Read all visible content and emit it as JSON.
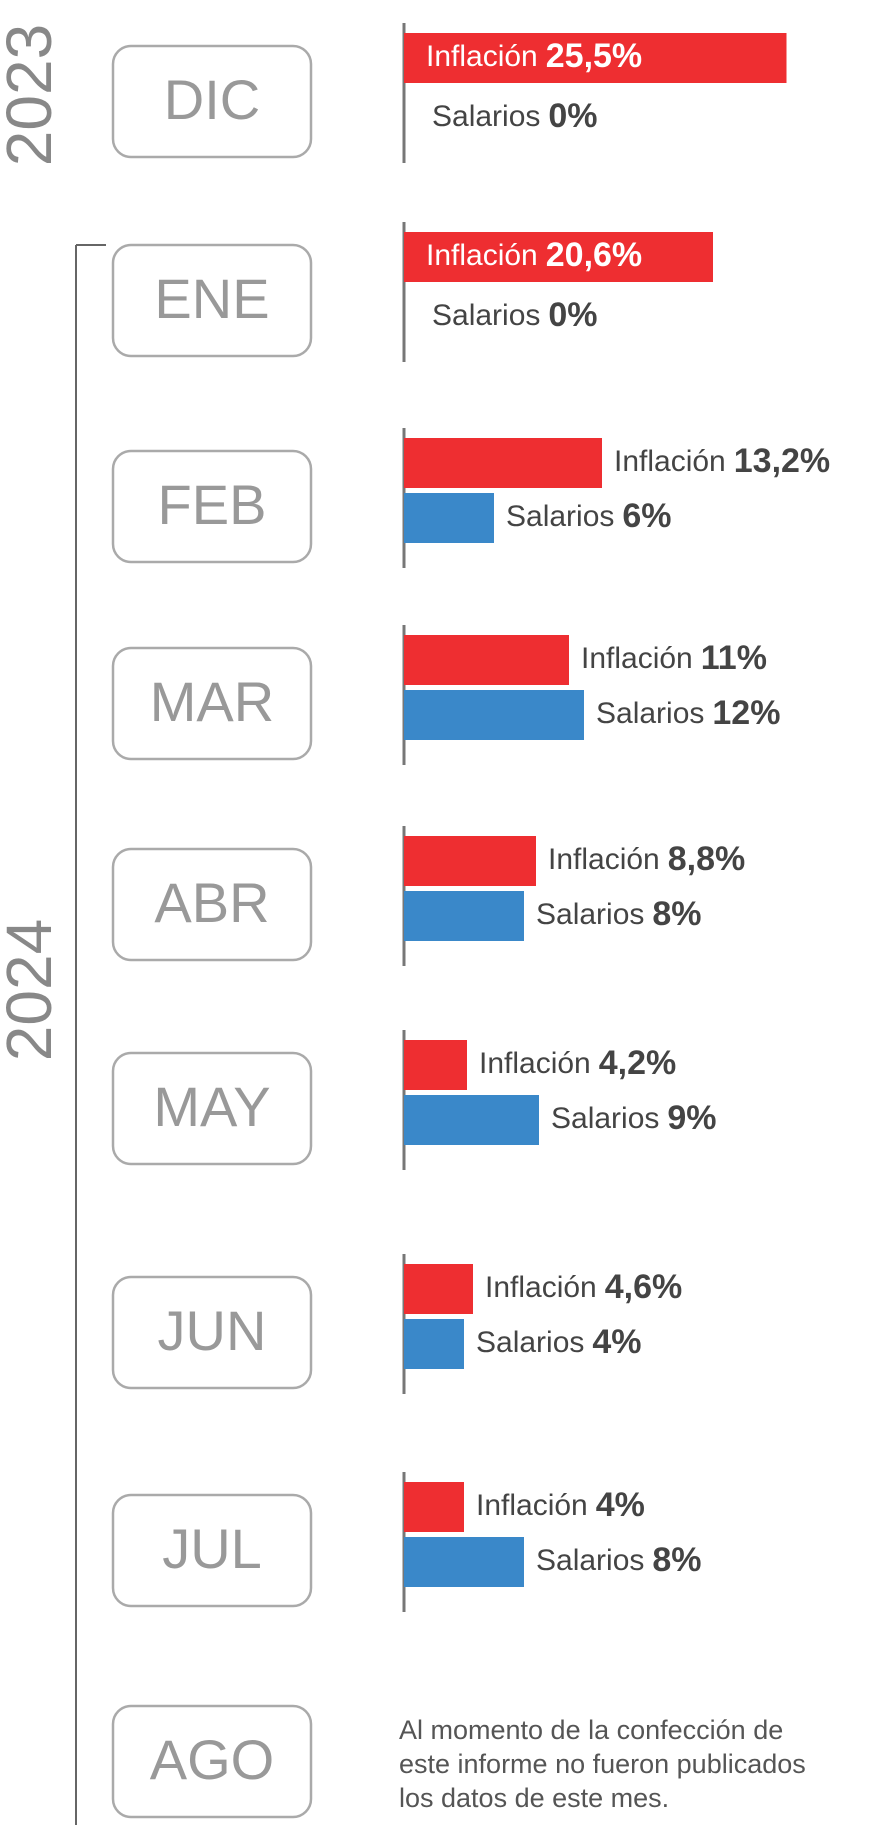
{
  "chart_data": {
    "type": "bar",
    "orientation": "horizontal",
    "annotations": [
      "2023",
      "2024"
    ],
    "categories": [
      "DIC",
      "ENE",
      "FEB",
      "MAR",
      "ABR",
      "MAY",
      "JUN",
      "JUL",
      "AGO"
    ],
    "series": [
      {
        "name": "Inflación",
        "color": "#ee2e31",
        "values": [
          25.5,
          20.6,
          13.2,
          11,
          8.8,
          4.2,
          4.6,
          4,
          null
        ],
        "value_labels": [
          "25,5%",
          "20,6%",
          "13,2%",
          "11%",
          "8,8%",
          "4,2%",
          "4,6%",
          "4%",
          null
        ]
      },
      {
        "name": "Salarios",
        "color": "#3a88c9",
        "values": [
          0,
          0,
          6,
          12,
          8,
          9,
          4,
          8,
          null
        ],
        "value_labels": [
          "0%",
          "0%",
          "6%",
          "12%",
          "8%",
          "9%",
          "4%",
          "8%",
          null
        ]
      }
    ],
    "note": [
      "Al momento de la confección de",
      "este informe no fueron publicados",
      "los datos de este mes."
    ]
  }
}
